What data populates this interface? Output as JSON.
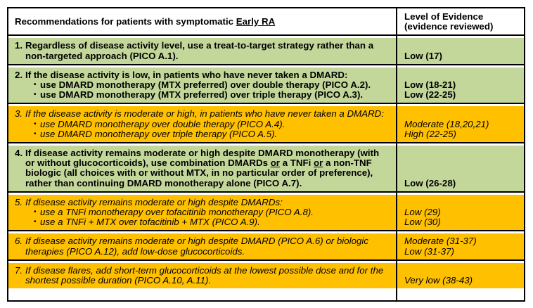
{
  "colors": {
    "green_row": "#c4d79b",
    "gold_row": "#ffc000",
    "border": "#000000",
    "header_bg": "#ffffff"
  },
  "bullet_glyph": "•",
  "header": {
    "left_segments": [
      {
        "t": "Recommendations for patients with symptomatic "
      },
      {
        "t": "Early RA",
        "u": true
      }
    ],
    "right_lines": [
      "Level of Evidence",
      "(evidence reviewed)"
    ]
  },
  "rows": [
    {
      "number": "1.",
      "variant": "green",
      "intro_segments": [
        {
          "t": "Regardless of disease activity level, use a treat-to-target strategy rather than a non-targeted approach (PICO A.1)."
        }
      ],
      "bullets": [],
      "evidence": [
        "Low (17)"
      ]
    },
    {
      "number": "2.",
      "variant": "green",
      "intro_segments": [
        {
          "t": "If the disease activity is low, in patients who have never taken a DMARD:"
        }
      ],
      "bullets": [
        [
          {
            "t": "use DMARD monotherapy (MTX preferred) over double therapy (PICO A.2)."
          }
        ],
        [
          {
            "t": "use DMARD monotherapy (MTX preferred) over triple therapy (PICO A.3)."
          }
        ]
      ],
      "evidence": [
        "Low (18-21)",
        "Low (22-25)"
      ]
    },
    {
      "number": "3.",
      "variant": "gold",
      "intro_segments": [
        {
          "t": "If the disease activity is moderate or high, in patients who have never taken a DMARD:"
        }
      ],
      "bullets": [
        [
          {
            "t": "use DMARD monotherapy over double therapy (PICO A.4)."
          }
        ],
        [
          {
            "t": "use DMARD monotherapy over triple therapy (PICO A.5)."
          }
        ]
      ],
      "evidence": [
        "Moderate (18,20,21)",
        "High (22-25)"
      ]
    },
    {
      "number": "4.",
      "variant": "green",
      "intro_segments": [
        {
          "t": "If disease activity remains moderate or high despite DMARD monotherapy (with or without glucocorticoids), use combination DMARDs "
        },
        {
          "t": "or",
          "u": true
        },
        {
          "t": " a TNFi "
        },
        {
          "t": "or",
          "u": true
        },
        {
          "t": " a non-TNF biologic (all choices with or without MTX, in no particular order of preference), rather than continuing DMARD monotherapy alone (PICO A.7)."
        }
      ],
      "bullets": [],
      "evidence": [
        "Low (26-28)"
      ]
    },
    {
      "number": "5.",
      "variant": "gold",
      "intro_segments": [
        {
          "t": "If disease activity remains moderate or high despite DMARDs:"
        }
      ],
      "bullets": [
        [
          {
            "t": "use a TNFi monotherapy over tofacitinib monotherapy (PICO A.8)."
          }
        ],
        [
          {
            "t": "use a TNFi + MTX over tofacitinib + MTX (PICO A.9)."
          }
        ]
      ],
      "evidence": [
        "Low (29)",
        "Low (30)"
      ]
    },
    {
      "number": "6.",
      "variant": "gold",
      "intro_segments": [
        {
          "t": "If disease activity remains moderate or high despite DMARD (PICO A.6) or biologic therapies (PICO A.12), add low-dose glucocorticoids."
        }
      ],
      "bullets": [],
      "evidence": [
        "Moderate (31-37)",
        "Low (31-37)"
      ]
    },
    {
      "number": "7.",
      "variant": "gold",
      "intro_segments": [
        {
          "t": "If disease flares, add short-term glucocorticoids at the lowest possible dose and for the shortest possible duration (PICO A.10, A.11)."
        }
      ],
      "bullets": [],
      "evidence": [
        "Very low (38-43)"
      ]
    }
  ]
}
